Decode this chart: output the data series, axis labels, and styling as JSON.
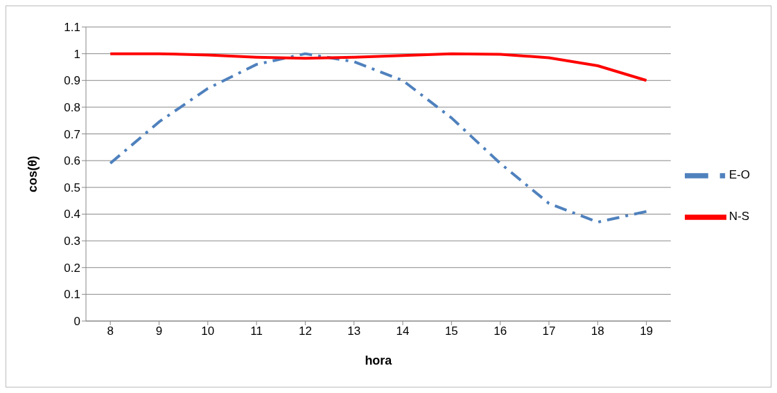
{
  "chart_data": {
    "type": "line",
    "xlabel": "hora",
    "ylabel": "cos(θ)",
    "categories": [
      "8",
      "9",
      "10",
      "11",
      "12",
      "13",
      "14",
      "15",
      "16",
      "17",
      "18",
      "19"
    ],
    "series": [
      {
        "name": "E-O",
        "color": "#4f81bd",
        "line_style": "dashed",
        "values": [
          0.59,
          0.745,
          0.87,
          0.96,
          1.0,
          0.97,
          0.9,
          0.76,
          0.59,
          0.44,
          0.37,
          0.41
        ]
      },
      {
        "name": "N-S",
        "color": "#ff0000",
        "line_style": "solid",
        "values": [
          1.0,
          1.0,
          0.995,
          0.987,
          0.983,
          0.987,
          0.993,
          1.0,
          0.998,
          0.985,
          0.955,
          0.9
        ]
      }
    ],
    "ylim": [
      0,
      1.1
    ],
    "yticks": [
      0,
      0.1,
      0.2,
      0.3,
      0.4,
      0.5,
      0.6,
      0.7,
      0.8,
      0.9,
      1,
      1.1
    ],
    "grid": "y",
    "legend": "right",
    "marker": "none"
  }
}
